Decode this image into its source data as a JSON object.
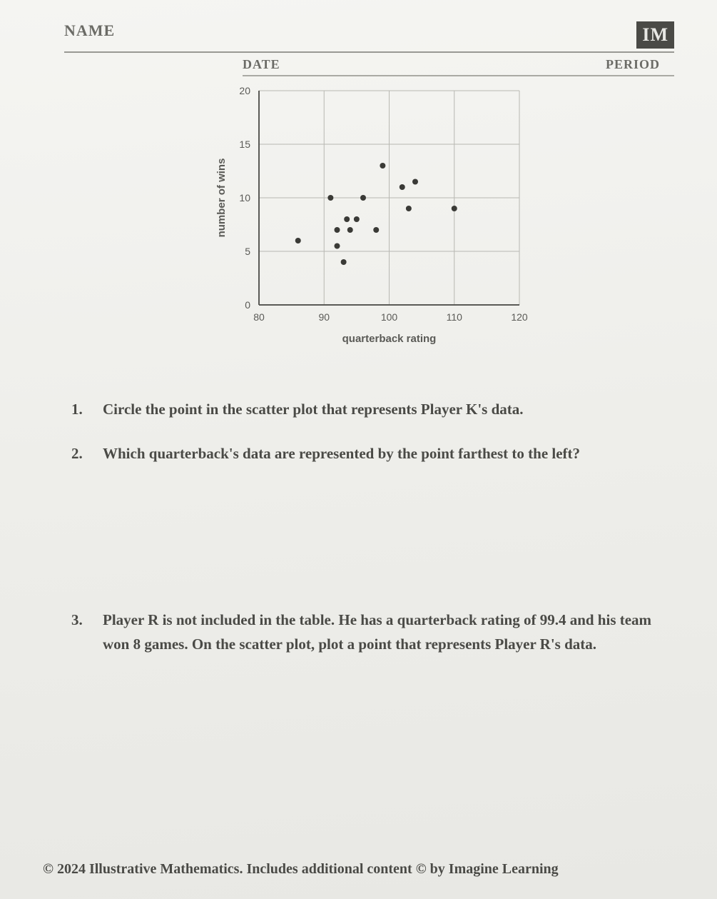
{
  "header": {
    "name_label": "NAME",
    "logo_text": "IM",
    "date_label": "DATE",
    "period_label": "PERIOD"
  },
  "chart": {
    "type": "scatter",
    "xlabel": "quarterback rating",
    "ylabel": "number of wins",
    "xlim": [
      80,
      120
    ],
    "ylim": [
      0,
      20
    ],
    "xticks": [
      80,
      90,
      100,
      110,
      120
    ],
    "yticks": [
      0,
      5,
      10,
      15,
      20
    ],
    "xtick_labels": [
      "80",
      "90",
      "100",
      "110",
      "120"
    ],
    "ytick_labels": [
      "0",
      "5",
      "10",
      "15",
      "20"
    ],
    "label_fontsize": 15,
    "tick_fontsize": 14,
    "grid_color": "#b8b8b2",
    "axis_color": "#5a5a56",
    "background_color": "transparent",
    "point_color": "#3a3a36",
    "point_radius": 4,
    "points": [
      {
        "x": 86,
        "y": 6
      },
      {
        "x": 91,
        "y": 10
      },
      {
        "x": 92,
        "y": 5.5
      },
      {
        "x": 92,
        "y": 7
      },
      {
        "x": 93,
        "y": 4
      },
      {
        "x": 93.5,
        "y": 8
      },
      {
        "x": 94,
        "y": 7
      },
      {
        "x": 95,
        "y": 8
      },
      {
        "x": 96,
        "y": 10
      },
      {
        "x": 98,
        "y": 7
      },
      {
        "x": 99,
        "y": 13
      },
      {
        "x": 102,
        "y": 11
      },
      {
        "x": 103,
        "y": 9
      },
      {
        "x": 104,
        "y": 11.5
      },
      {
        "x": 110,
        "y": 9
      }
    ]
  },
  "questions": {
    "q1": {
      "num": "1.",
      "text": "Circle the point in the scatter plot that represents Player K's data."
    },
    "q2": {
      "num": "2.",
      "text": "Which quarterback's data are represented by the point farthest to the left?"
    },
    "q3": {
      "num": "3.",
      "text": "Player R is not included in the table. He has a quarterback rating of 99.4 and his team won 8 games. On the scatter plot, plot a point that represents Player R's data."
    }
  },
  "footer": {
    "text": "© 2024 Illustrative Mathematics. Includes additional content © by Imagine Learning"
  }
}
